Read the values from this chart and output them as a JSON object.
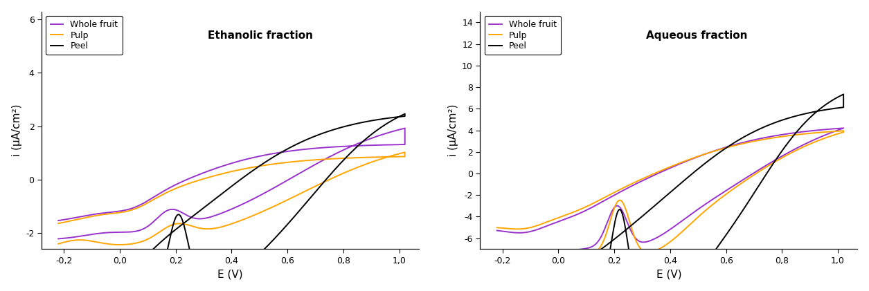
{
  "fig1_title": "Ethanolic fraction",
  "fig2_title": "Aqueous fraction",
  "xlabel": "E (V)",
  "ylabel": "i (μA/cm²)",
  "legend_labels": [
    "Whole fruit",
    "Pulp",
    "Peel"
  ],
  "colors": [
    "#9932CC",
    "#FFA500",
    "#000000"
  ],
  "fig1_xlim": [
    -0.28,
    1.07
  ],
  "fig1_ylim": [
    -2.6,
    6.3
  ],
  "fig1_xticks": [
    -0.2,
    0.0,
    0.2,
    0.4,
    0.6,
    0.8,
    1.0
  ],
  "fig1_yticks": [
    -2,
    0,
    2,
    4,
    6
  ],
  "fig2_xlim": [
    -0.28,
    1.07
  ],
  "fig2_ylim": [
    -7.0,
    15.0
  ],
  "fig2_xticks": [
    -0.2,
    0.0,
    0.2,
    0.4,
    0.6,
    0.8,
    1.0
  ],
  "fig2_yticks": [
    -6,
    -4,
    -2,
    0,
    2,
    4,
    6,
    8,
    10,
    12,
    14
  ]
}
